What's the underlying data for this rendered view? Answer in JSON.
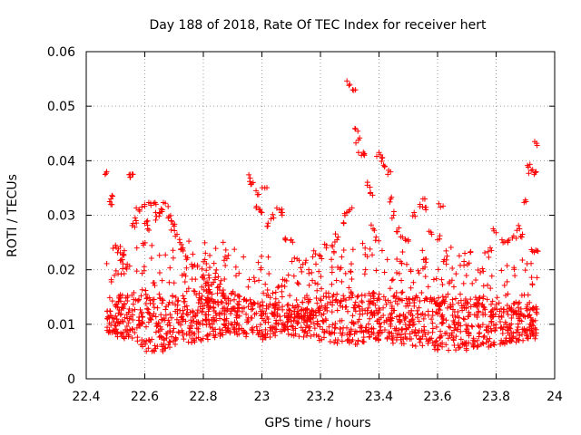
{
  "chart_data": {
    "type": "scatter",
    "title": "Day 188 of 2018, Rate Of TEC Index for receiver hert",
    "xlabel": "GPS time / hours",
    "ylabel": "ROTI / TECUs",
    "xlim": [
      22.4,
      24.0
    ],
    "ylim": [
      0,
      0.06
    ],
    "xticks": [
      "22.4",
      "22.6",
      "22.8",
      "23",
      "23.2",
      "23.4",
      "23.6",
      "23.8",
      "24"
    ],
    "yticks": [
      "0",
      "0.01",
      "0.02",
      "0.03",
      "0.04",
      "0.05",
      "0.06"
    ],
    "grid": true,
    "marker": "+",
    "color": "#ff0000",
    "x_range_data": [
      22.47,
      23.94
    ],
    "band_lower": {
      "x": [
        22.47,
        22.55,
        22.63,
        22.7,
        22.8,
        22.9,
        23.0,
        23.1,
        23.2,
        23.3,
        23.4,
        23.5,
        23.6,
        23.7,
        23.8,
        23.9,
        23.94
      ],
      "y": [
        0.008,
        0.007,
        0.004,
        0.006,
        0.007,
        0.008,
        0.007,
        0.008,
        0.007,
        0.006,
        0.007,
        0.006,
        0.005,
        0.005,
        0.006,
        0.007,
        0.007
      ]
    },
    "band_upper": {
      "x": [
        22.47,
        22.55,
        22.63,
        22.7,
        22.8,
        22.9,
        23.0,
        23.1,
        23.2,
        23.3,
        23.4,
        23.5,
        23.6,
        23.7,
        23.8,
        23.9,
        23.94
      ],
      "y": [
        0.014,
        0.016,
        0.016,
        0.015,
        0.018,
        0.016,
        0.014,
        0.014,
        0.015,
        0.016,
        0.016,
        0.015,
        0.015,
        0.016,
        0.014,
        0.014,
        0.014
      ]
    },
    "points": [
      [
        22.47,
        0.038
      ],
      [
        22.48,
        0.0325
      ],
      [
        22.49,
        0.0335
      ],
      [
        22.5,
        0.0245
      ],
      [
        22.51,
        0.0238
      ],
      [
        22.52,
        0.0218
      ],
      [
        22.53,
        0.0235
      ],
      [
        22.54,
        0.021
      ],
      [
        22.55,
        0.0375
      ],
      [
        22.56,
        0.0375
      ],
      [
        22.56,
        0.0285
      ],
      [
        22.57,
        0.029
      ],
      [
        22.58,
        0.031
      ],
      [
        22.59,
        0.0315
      ],
      [
        22.6,
        0.0285
      ],
      [
        22.61,
        0.0275
      ],
      [
        22.62,
        0.0322
      ],
      [
        22.63,
        0.0322
      ],
      [
        22.64,
        0.0298
      ],
      [
        22.65,
        0.0305
      ],
      [
        22.66,
        0.031
      ],
      [
        22.67,
        0.0322
      ],
      [
        22.68,
        0.0295
      ],
      [
        22.69,
        0.029
      ],
      [
        22.7,
        0.028
      ],
      [
        22.71,
        0.0265
      ],
      [
        22.72,
        0.025
      ],
      [
        22.73,
        0.024
      ],
      [
        22.74,
        0.0225
      ],
      [
        22.76,
        0.021
      ],
      [
        22.78,
        0.0205
      ],
      [
        22.8,
        0.019
      ],
      [
        22.82,
        0.0185
      ],
      [
        22.84,
        0.0182
      ],
      [
        22.86,
        0.018
      ],
      [
        22.96,
        0.0368
      ],
      [
        22.97,
        0.036
      ],
      [
        22.98,
        0.0345
      ],
      [
        22.99,
        0.031
      ],
      [
        23.0,
        0.0305
      ],
      [
        23.01,
        0.035
      ],
      [
        23.02,
        0.028
      ],
      [
        23.04,
        0.0295
      ],
      [
        23.06,
        0.031
      ],
      [
        23.07,
        0.0305
      ],
      [
        23.08,
        0.0258
      ],
      [
        23.1,
        0.0255
      ],
      [
        23.12,
        0.022
      ],
      [
        23.14,
        0.021
      ],
      [
        23.16,
        0.02
      ],
      [
        23.2,
        0.0225
      ],
      [
        23.22,
        0.024
      ],
      [
        23.24,
        0.0245
      ],
      [
        23.26,
        0.026
      ],
      [
        23.28,
        0.0285
      ],
      [
        23.29,
        0.0305
      ],
      [
        23.3,
        0.031
      ],
      [
        23.3,
        0.054
      ],
      [
        23.31,
        0.053
      ],
      [
        23.32,
        0.0458
      ],
      [
        23.33,
        0.0438
      ],
      [
        23.34,
        0.041
      ],
      [
        23.35,
        0.041
      ],
      [
        23.36,
        0.0355
      ],
      [
        23.37,
        0.034
      ],
      [
        23.38,
        0.0275
      ],
      [
        23.39,
        0.026
      ],
      [
        23.4,
        0.0415
      ],
      [
        23.41,
        0.0405
      ],
      [
        23.42,
        0.039
      ],
      [
        23.43,
        0.0375
      ],
      [
        23.44,
        0.033
      ],
      [
        23.45,
        0.03
      ],
      [
        23.46,
        0.027
      ],
      [
        23.48,
        0.026
      ],
      [
        23.5,
        0.0255
      ],
      [
        23.52,
        0.0305
      ],
      [
        23.54,
        0.032
      ],
      [
        23.55,
        0.033
      ],
      [
        23.56,
        0.031
      ],
      [
        23.58,
        0.0265
      ],
      [
        23.6,
        0.0255
      ],
      [
        23.61,
        0.0315
      ],
      [
        23.62,
        0.0215
      ],
      [
        23.64,
        0.0175
      ],
      [
        23.78,
        0.024
      ],
      [
        23.8,
        0.0268
      ],
      [
        23.82,
        0.0255
      ],
      [
        23.84,
        0.025
      ],
      [
        23.86,
        0.0262
      ],
      [
        23.88,
        0.0275
      ],
      [
        23.89,
        0.0265
      ],
      [
        23.9,
        0.0328
      ],
      [
        23.91,
        0.0388
      ],
      [
        23.92,
        0.0382
      ],
      [
        23.93,
        0.0375
      ],
      [
        23.94,
        0.0428
      ],
      [
        23.93,
        0.0232
      ],
      [
        23.94,
        0.0235
      ]
    ]
  }
}
